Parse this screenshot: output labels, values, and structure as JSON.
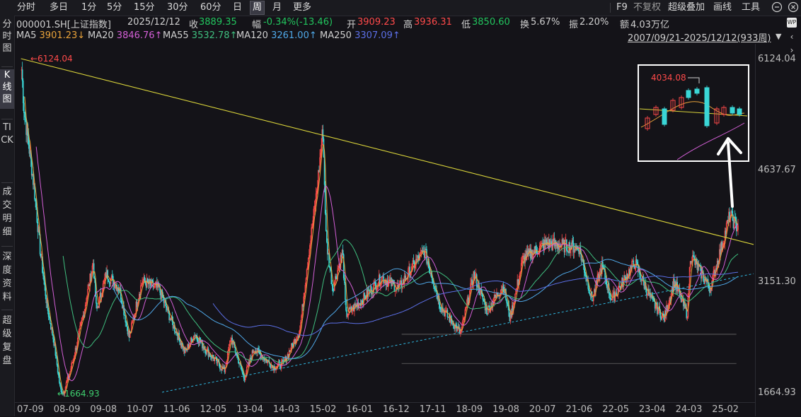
{
  "toolbar": {
    "periods": [
      "分时",
      "多日",
      "1分",
      "5分",
      "15分",
      "30分",
      "60分",
      "日",
      "周",
      "月",
      "更多"
    ],
    "active_period": "周",
    "right": [
      "F9",
      "不复权",
      "超级叠加",
      "画线",
      "工具"
    ]
  },
  "sidebar": {
    "items": [
      "分时图",
      "K线图",
      "TICK",
      "成交明细",
      "深度资料",
      "超级复盘"
    ],
    "active": "K线图"
  },
  "quote": {
    "symbol": "000001.SH[上证指数]",
    "date": "2025/12/12",
    "close_label": "收",
    "close": "3889.35",
    "change_label": "幅",
    "change": "-0.34%(-13.46)",
    "open_label": "开",
    "open": "3909.23",
    "high_label": "高",
    "high": "3936.31",
    "low_label": "低",
    "low": "3850.60",
    "turnover_label": "换",
    "turnover": "5.67%",
    "amplitude_label": "振",
    "amplitude": "2.20%",
    "amount_label": "额",
    "amount": "4.03万亿"
  },
  "ma": {
    "ma5_label": "MA5",
    "ma5": "3901.23↓",
    "ma20_label": "MA20",
    "ma20": "3846.76↑",
    "ma55_label": "MA55",
    "ma55": "3532.78↑",
    "ma120_label": "MA120",
    "ma120": "3261.00↑",
    "ma250_label": "MA250",
    "ma250": "3307.09↑"
  },
  "range_label": "2007/09/21-2025/12/12(933周)",
  "colors": {
    "up": "#ff4a4a",
    "down": "#3ad6d6",
    "ma5": "#e8a23a",
    "ma20": "#d35fd6",
    "ma55": "#3fbf7f",
    "ma120": "#4fa8e8",
    "ma250": "#5b6fe6",
    "trend_upper": "#d9d33a",
    "trend_lower": "#2fb7e0"
  },
  "chart_data": {
    "type": "candlestick",
    "x_ticks": [
      "07-09",
      "08-09",
      "09-08",
      "10-07",
      "11-06",
      "12-05",
      "13-04",
      "14-03",
      "15-02",
      "16-01",
      "16-12",
      "17-11",
      "18-09",
      "19-08",
      "20-07",
      "21-06",
      "22-05",
      "23-04",
      "24-03",
      "25-02"
    ],
    "y_ticks": [
      "6124.04",
      "4637.67",
      "3151.30",
      "1664.93"
    ],
    "ylim": [
      1664.93,
      6124.04
    ],
    "annotations": {
      "max": "6124.04",
      "min": "1664.93",
      "inset_high": "4034.08"
    },
    "weekly_close_path": [
      [
        "2007-10",
        6124
      ],
      [
        "2007-11",
        5400
      ],
      [
        "2007-12",
        5100
      ],
      [
        "2008-02",
        4400
      ],
      [
        "2008-04",
        3500
      ],
      [
        "2008-06",
        2800
      ],
      [
        "2008-08",
        2350
      ],
      [
        "2008-10",
        1700
      ],
      [
        "2008-11",
        1665
      ],
      [
        "2009-01",
        1950
      ],
      [
        "2009-03",
        2300
      ],
      [
        "2009-05",
        2700
      ],
      [
        "2009-08",
        3400
      ],
      [
        "2009-09",
        2750
      ],
      [
        "2009-12",
        3250
      ],
      [
        "2010-04",
        3050
      ],
      [
        "2010-07",
        2400
      ],
      [
        "2010-10",
        3000
      ],
      [
        "2010-11",
        3150
      ],
      [
        "2011-04",
        3050
      ],
      [
        "2011-08",
        2600
      ],
      [
        "2011-12",
        2200
      ],
      [
        "2012-03",
        2450
      ],
      [
        "2012-06",
        2250
      ],
      [
        "2012-12",
        1950
      ],
      [
        "2013-02",
        2400
      ],
      [
        "2013-06",
        1850
      ],
      [
        "2013-09",
        2250
      ],
      [
        "2014-03",
        2000
      ],
      [
        "2014-06",
        2050
      ],
      [
        "2014-11",
        2500
      ],
      [
        "2015-01",
        3300
      ],
      [
        "2015-04",
        4300
      ],
      [
        "2015-06",
        5178
      ],
      [
        "2015-07",
        3700
      ],
      [
        "2015-09",
        3050
      ],
      [
        "2015-12",
        3550
      ],
      [
        "2016-01",
        2700
      ],
      [
        "2016-06",
        2900
      ],
      [
        "2016-12",
        3200
      ],
      [
        "2017-05",
        3050
      ],
      [
        "2017-11",
        3450
      ],
      [
        "2018-01",
        3550
      ],
      [
        "2018-06",
        2800
      ],
      [
        "2018-12",
        2450
      ],
      [
        "2019-04",
        3250
      ],
      [
        "2019-08",
        2750
      ],
      [
        "2020-01",
        3100
      ],
      [
        "2020-03",
        2650
      ],
      [
        "2020-07",
        3450
      ],
      [
        "2021-02",
        3650
      ],
      [
        "2021-12",
        3600
      ],
      [
        "2022-04",
        2900
      ],
      [
        "2022-07",
        3350
      ],
      [
        "2022-10",
        2900
      ],
      [
        "2023-05",
        3400
      ],
      [
        "2023-10",
        2900
      ],
      [
        "2024-02",
        2650
      ],
      [
        "2024-05",
        3150
      ],
      [
        "2024-09",
        2700
      ],
      [
        "2024-10",
        3500
      ],
      [
        "2025-04",
        3050
      ],
      [
        "2025-08",
        3700
      ],
      [
        "2025-10",
        4034
      ],
      [
        "2025-12",
        3889
      ]
    ]
  }
}
